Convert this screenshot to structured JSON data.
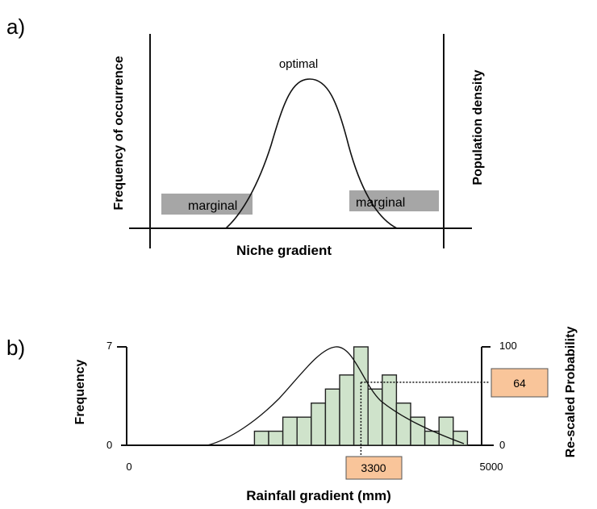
{
  "chart_data": [
    {
      "type": "area",
      "panel_label": "a)",
      "xlabel": "Niche gradient",
      "ylabel_left": "Frequency of occurrence",
      "ylabel_right": "Population density",
      "annotations": {
        "peak": "optimal",
        "left_tail": "marginal",
        "right_tail": "marginal"
      },
      "colors": {
        "marginal_box": "#a6a6a6",
        "axis": "#111111"
      }
    },
    {
      "type": "bar",
      "panel_label": "b)",
      "xlabel": "Rainfall gradient (mm)",
      "ylabel_left": "Frequency",
      "ylabel_right": "Re-scaled Probability",
      "xlim": [
        0,
        5000
      ],
      "ylim_left": [
        0,
        7
      ],
      "ylim_right": [
        0,
        100
      ],
      "x_ticks": [
        "0",
        "5000"
      ],
      "y_ticks_left": [
        "0",
        "7"
      ],
      "y_ticks_right": [
        "0",
        "100"
      ],
      "bin_width": 200,
      "bin_starts": [
        1800,
        2000,
        2200,
        2400,
        2600,
        2800,
        3000,
        3200,
        3400,
        3600,
        3800,
        4000,
        4200,
        4400,
        4600,
        4800,
        5000,
        5200
      ],
      "values": [
        1,
        1,
        2,
        2,
        3,
        4,
        5,
        7,
        4,
        5,
        3,
        2,
        1,
        2,
        1,
        0,
        0,
        0
      ],
      "highlight": {
        "x": 3300,
        "x_label": "3300",
        "probability": 64,
        "probability_label": "64"
      },
      "colors": {
        "bar_fill": "#cfe3cb",
        "bar_stroke": "#222222",
        "highlight_box": "#f9c59a"
      }
    }
  ]
}
